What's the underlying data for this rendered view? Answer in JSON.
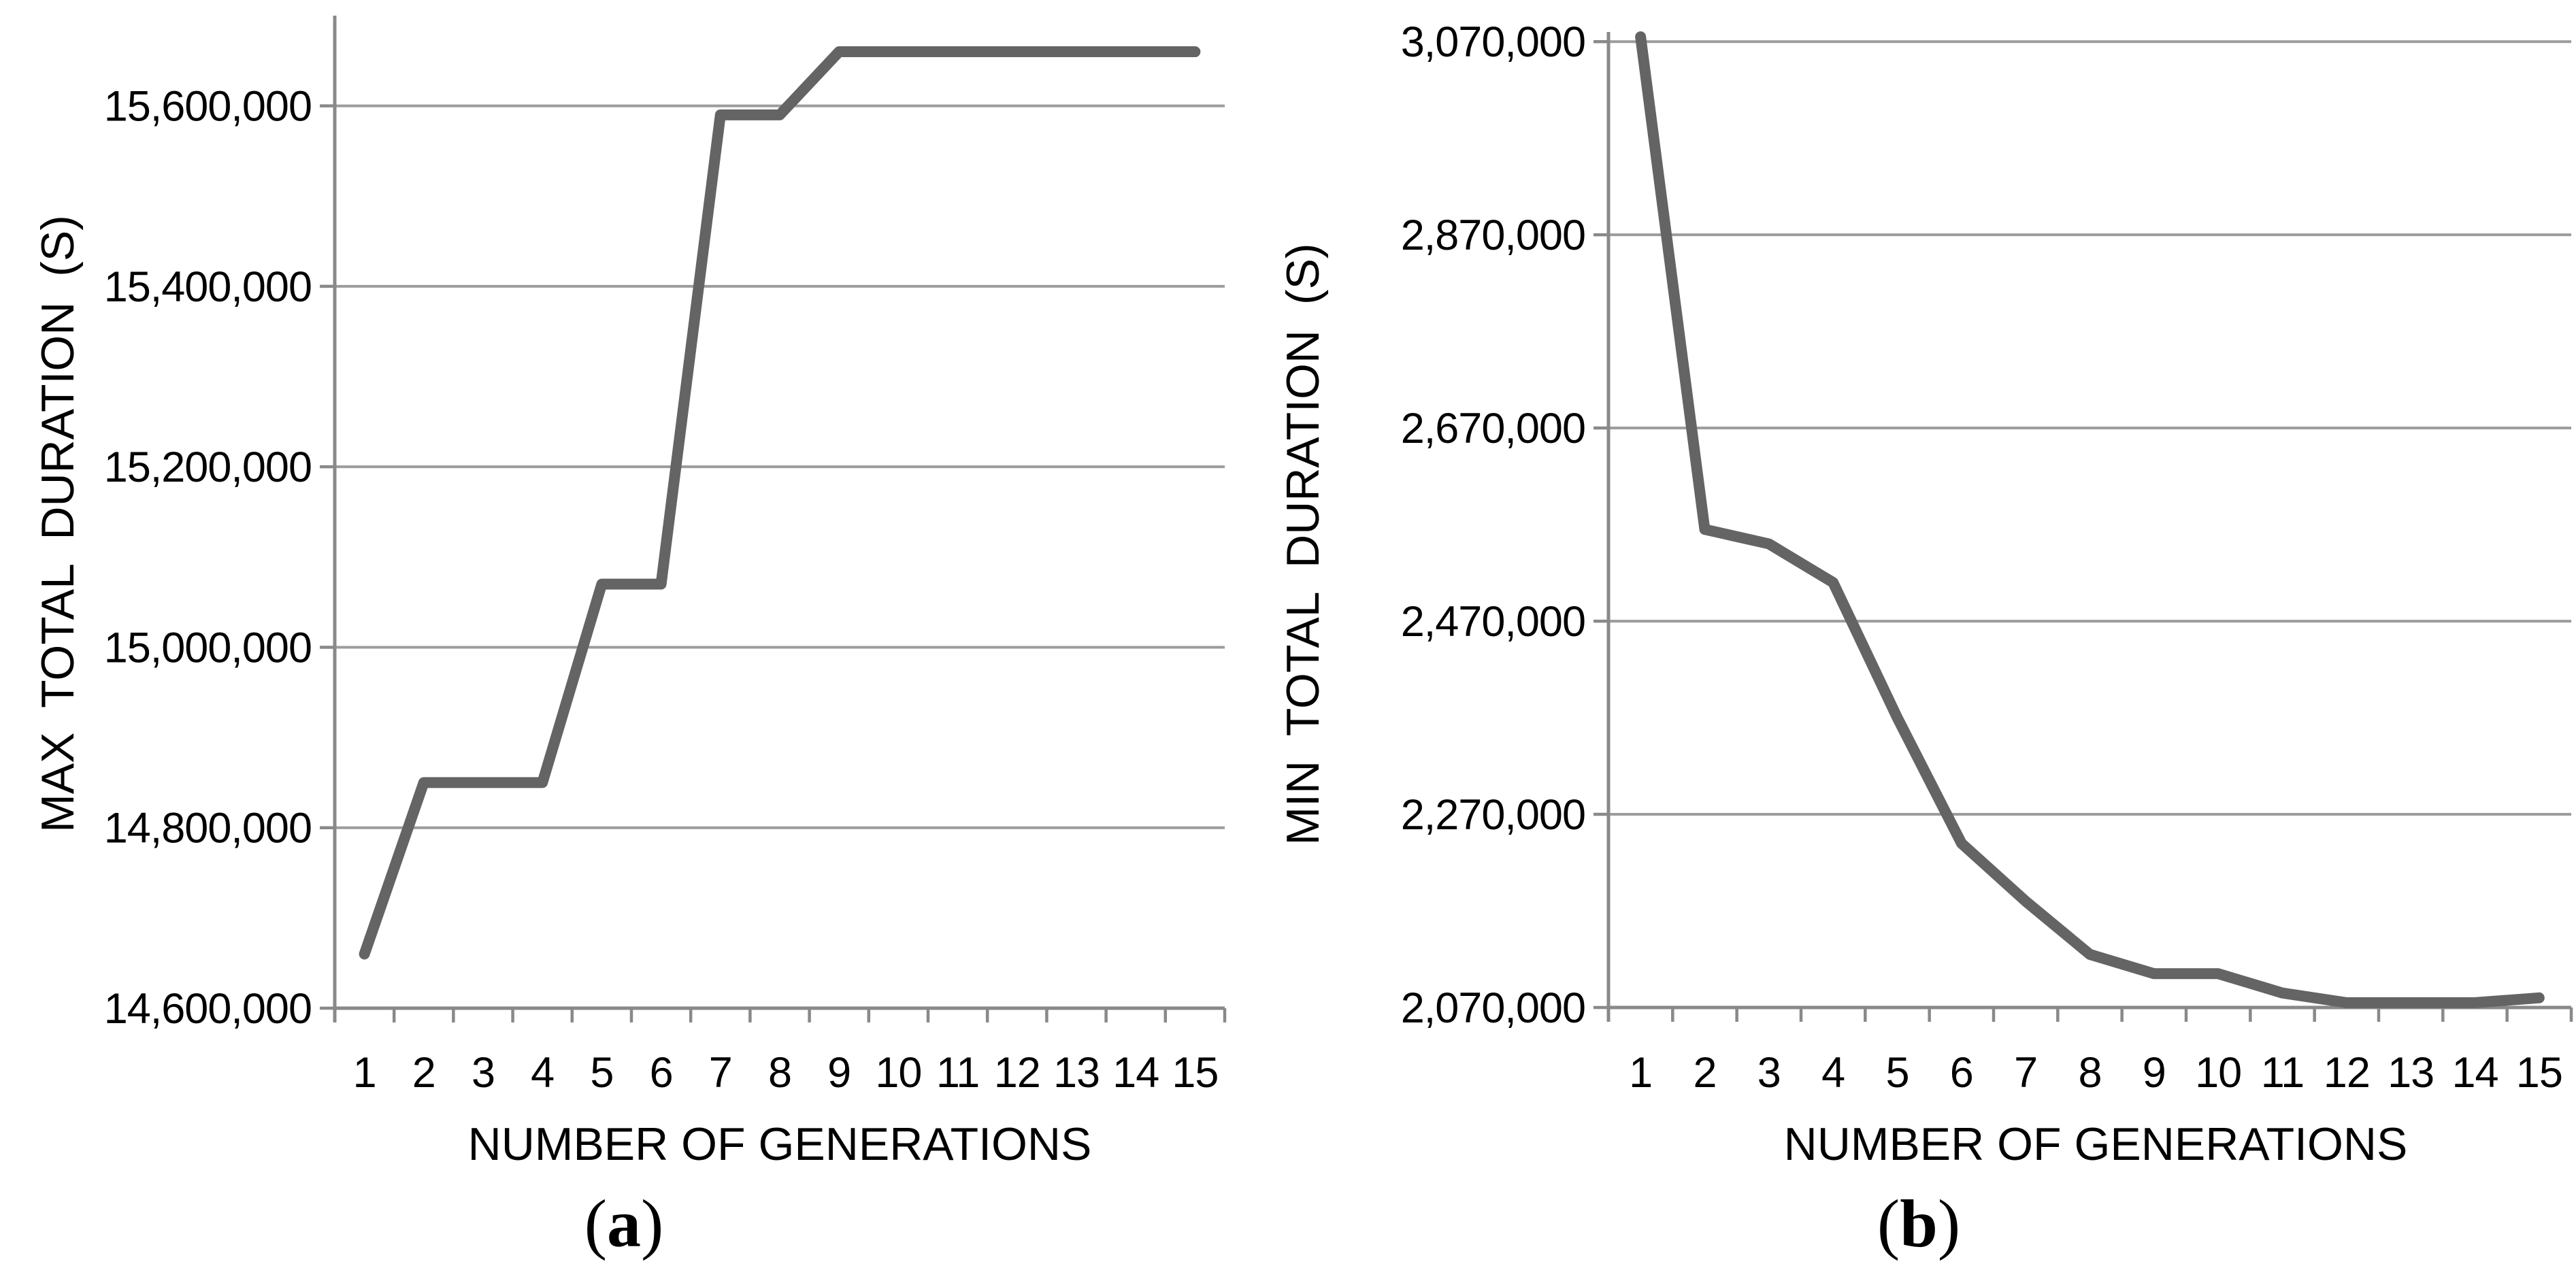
{
  "figure": {
    "background": "#ffffff"
  },
  "chart_data": [
    {
      "type": "line",
      "panel": "a",
      "caption": {
        "prefix": "(",
        "letter": "a",
        "suffix": ")"
      },
      "title": "",
      "xlabel": "NUMBER OF GENERATIONS",
      "ylabel": "MAX TOTAL DURATION (S)",
      "categories": [
        "1",
        "2",
        "3",
        "4",
        "5",
        "6",
        "7",
        "8",
        "9",
        "10",
        "11",
        "12",
        "13",
        "14",
        "15"
      ],
      "values": [
        14660000,
        14850000,
        14850000,
        14850000,
        15070000,
        15070000,
        15590000,
        15590000,
        15660000,
        15660000,
        15660000,
        15660000,
        15660000,
        15660000,
        15660000
      ],
      "ylim": [
        14600000,
        15700000
      ],
      "ytick_interval": 200000,
      "yticks": [
        {
          "value": 14600000,
          "label": "14,600,000"
        },
        {
          "value": 14800000,
          "label": "14,800,000"
        },
        {
          "value": 15000000,
          "label": "15,000,000"
        },
        {
          "value": 15200000,
          "label": "15,200,000"
        },
        {
          "value": 15400000,
          "label": "15,400,000"
        },
        {
          "value": 15600000,
          "label": "15,600,000"
        }
      ],
      "grid": true,
      "legend": "none",
      "colors": {
        "line": "#646464",
        "grid": "#9c9c9c",
        "axis": "#898989",
        "text": "#000000"
      }
    },
    {
      "type": "line",
      "panel": "b",
      "caption": {
        "prefix": "(",
        "letter": "b",
        "suffix": ")"
      },
      "title": "",
      "xlabel": "NUMBER OF GENERATIONS",
      "ylabel": "MIN TOTAL DURATION (S)",
      "categories": [
        "1",
        "2",
        "3",
        "4",
        "5",
        "6",
        "7",
        "8",
        "9",
        "10",
        "11",
        "12",
        "13",
        "14",
        "15"
      ],
      "values": [
        3075000,
        2565000,
        2550000,
        2510000,
        2370000,
        2240000,
        2180000,
        2125000,
        2105000,
        2105000,
        2085000,
        2075000,
        2075000,
        2075000,
        2080000
      ],
      "ylim": [
        2070000,
        3080000
      ],
      "ytick_interval": 200000,
      "yticks": [
        {
          "value": 2070000,
          "label": "2,070,000"
        },
        {
          "value": 2270000,
          "label": "2,270,000"
        },
        {
          "value": 2470000,
          "label": "2,470,000"
        },
        {
          "value": 2670000,
          "label": "2,670,000"
        },
        {
          "value": 2870000,
          "label": "2,870,000"
        },
        {
          "value": 3070000,
          "label": "3,070,000"
        }
      ],
      "grid": true,
      "legend": "none",
      "colors": {
        "line": "#646464",
        "grid": "#9c9c9c",
        "axis": "#898989",
        "text": "#000000"
      }
    }
  ]
}
